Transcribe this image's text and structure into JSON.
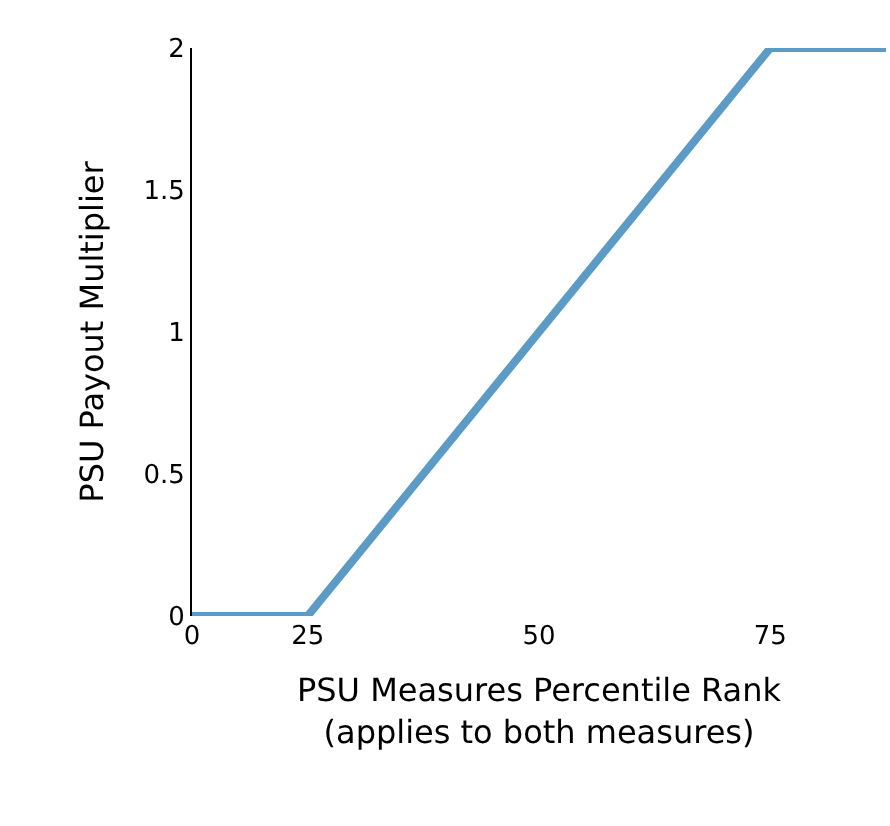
{
  "chart_data": {
    "type": "line",
    "xlabel": "PSU Measures Percentile Rank\n(applies to both measures)",
    "ylabel": "PSU Payout Multiplier",
    "categories": [
      "0",
      "25",
      null,
      "50",
      null,
      "75",
      null
    ],
    "series": [
      {
        "color": "#5b9bc5",
        "values": [
          0,
          0,
          0.5,
          1,
          1.5,
          2,
          2
        ]
      }
    ],
    "ylim": [
      0,
      2
    ],
    "yticks": [
      0,
      0.5,
      1,
      1.5,
      2
    ],
    "marker": "none",
    "line_style": "solid"
  }
}
